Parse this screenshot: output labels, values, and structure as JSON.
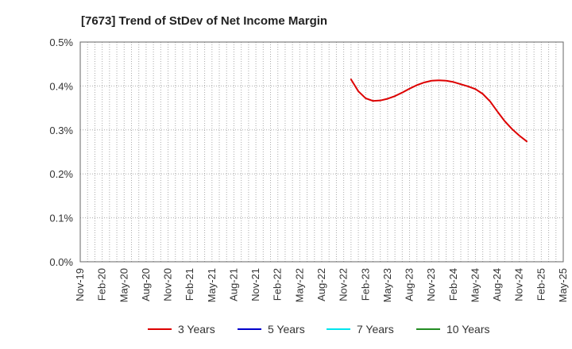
{
  "chart_data": {
    "type": "line",
    "title": "[7673]  Trend of StDev of Net Income Margin",
    "xlabel": "",
    "ylabel": "",
    "ylim": [
      0,
      0.5
    ],
    "y_ticks": [
      "0.0%",
      "0.1%",
      "0.2%",
      "0.3%",
      "0.4%",
      "0.5%"
    ],
    "x_tick_labels": [
      "Nov-19",
      "Feb-20",
      "May-20",
      "Aug-20",
      "Nov-20",
      "Feb-21",
      "May-21",
      "Aug-21",
      "Nov-21",
      "Feb-22",
      "May-22",
      "Aug-22",
      "Nov-22",
      "Feb-23",
      "May-23",
      "Aug-23",
      "Nov-23",
      "Feb-24",
      "May-24",
      "Aug-24",
      "Nov-24",
      "Feb-25",
      "May-25"
    ],
    "x_start_month": "Nov-19",
    "x_end_month": "May-25",
    "grid": true,
    "legend_position": "bottom",
    "series": [
      {
        "name": "3 Years",
        "color": "#dd0000",
        "start_month_index": 37,
        "values": [
          0.415,
          0.388,
          0.372,
          0.366,
          0.367,
          0.371,
          0.377,
          0.385,
          0.394,
          0.402,
          0.408,
          0.412,
          0.413,
          0.412,
          0.409,
          0.404,
          0.399,
          0.393,
          0.382,
          0.365,
          0.342,
          0.32,
          0.302,
          0.287,
          0.274
        ]
      },
      {
        "name": "5 Years",
        "color": "#0000cc",
        "start_month_index": 0,
        "values": []
      },
      {
        "name": "7 Years",
        "color": "#00e5ee",
        "start_month_index": 0,
        "values": []
      },
      {
        "name": "10 Years",
        "color": "#228b22",
        "start_month_index": 0,
        "values": []
      }
    ]
  }
}
